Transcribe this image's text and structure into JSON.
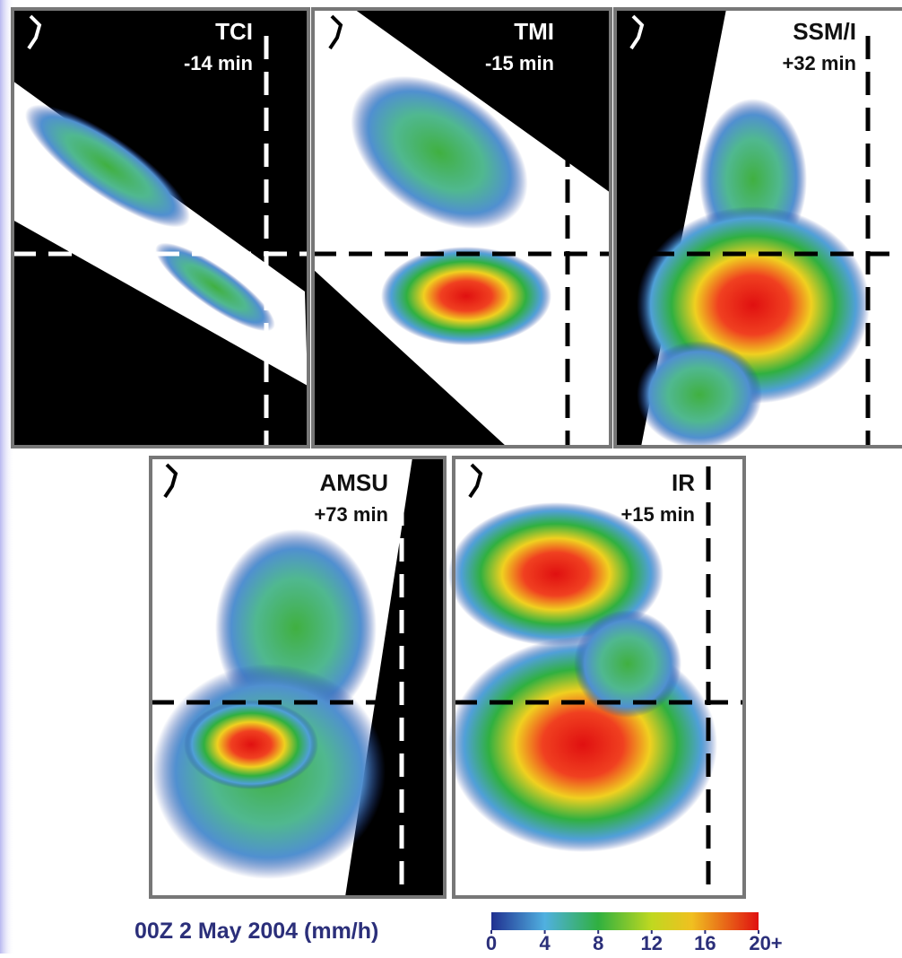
{
  "panels": [
    {
      "label": "TCI",
      "offset": "-14 min"
    },
    {
      "label": "TMI",
      "offset": "-15 min"
    },
    {
      "label": "SSM/I",
      "offset": "+32 min"
    },
    {
      "label": "AMSU",
      "offset": "+73 min"
    },
    {
      "label": "IR",
      "offset": "+15 min"
    }
  ],
  "caption": "00Z 2 May 2004 (mm/h)",
  "colorbar": {
    "lim": [
      0,
      20
    ],
    "ticks": [
      0,
      4,
      8,
      12,
      16,
      {
        "value": 20,
        "label": "20+"
      }
    ]
  }
}
